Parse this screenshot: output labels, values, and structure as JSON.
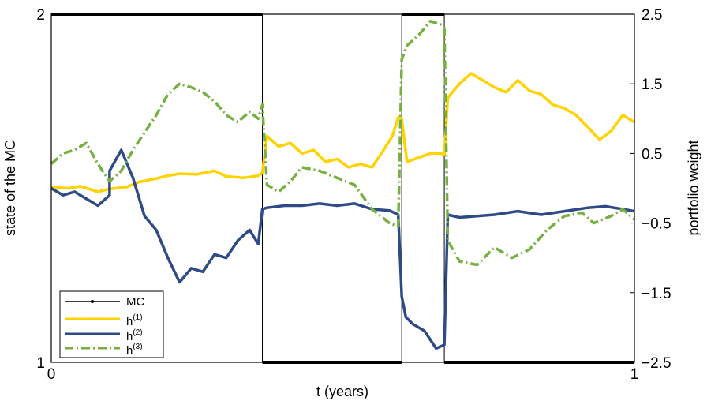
{
  "chart_data": {
    "type": "line",
    "xlabel": "t (years)",
    "ylabel_left": "state of the MC",
    "ylabel_right": "portfolio weight",
    "xlim": [
      0,
      1
    ],
    "ylim_left": [
      1,
      2
    ],
    "ylim_right": [
      -2.5,
      2.5
    ],
    "x_ticks": [
      "0",
      "1"
    ],
    "y_left_ticks": [
      "1",
      "2"
    ],
    "y_right_ticks": [
      "−2.5",
      "−1.5",
      "−0.5",
      "0.5",
      "1.5",
      "2.5"
    ],
    "y_right_tick_values": [
      -2.5,
      -1.5,
      -0.5,
      0.5,
      1.5,
      2.5
    ],
    "grid": false,
    "legend_position": "bottom-left",
    "mc_state": {
      "name": "MC",
      "color": "#000000",
      "segments": [
        [
          0,
          0.362,
          2
        ],
        [
          0.362,
          0.601,
          1
        ],
        [
          0.601,
          0.674,
          2
        ],
        [
          0.674,
          1,
          1
        ]
      ]
    },
    "series": [
      {
        "name": "h",
        "superscript": "(1)",
        "color": "#FFD200",
        "style": "solid",
        "x": [
          0,
          0.03,
          0.05,
          0.08,
          0.1,
          0.13,
          0.15,
          0.18,
          0.2,
          0.22,
          0.25,
          0.28,
          0.3,
          0.33,
          0.355,
          0.362,
          0.37,
          0.39,
          0.41,
          0.43,
          0.45,
          0.47,
          0.49,
          0.51,
          0.53,
          0.55,
          0.57,
          0.585,
          0.595,
          0.601,
          0.61,
          0.63,
          0.65,
          0.668,
          0.674,
          0.68,
          0.7,
          0.72,
          0.74,
          0.76,
          0.78,
          0.8,
          0.82,
          0.84,
          0.86,
          0.88,
          0.9,
          0.92,
          0.94,
          0.96,
          0.98,
          1.0
        ],
        "y": [
          0.02,
          0.0,
          0.03,
          -0.05,
          -0.01,
          0.02,
          0.09,
          0.14,
          0.18,
          0.21,
          0.2,
          0.25,
          0.17,
          0.15,
          0.18,
          0.22,
          0.75,
          0.6,
          0.65,
          0.5,
          0.55,
          0.38,
          0.42,
          0.3,
          0.35,
          0.3,
          0.55,
          0.75,
          1.02,
          1.0,
          0.38,
          0.44,
          0.5,
          0.5,
          0.48,
          1.3,
          1.5,
          1.65,
          1.55,
          1.45,
          1.38,
          1.55,
          1.4,
          1.35,
          1.2,
          1.15,
          1.05,
          0.88,
          0.7,
          0.82,
          1.05,
          0.95
        ]
      },
      {
        "name": "h",
        "superscript": "(2)",
        "color": "#2E4A87",
        "style": "solid",
        "x": [
          0,
          0.02,
          0.04,
          0.06,
          0.08,
          0.1,
          0.1,
          0.12,
          0.14,
          0.16,
          0.18,
          0.2,
          0.22,
          0.24,
          0.26,
          0.28,
          0.3,
          0.32,
          0.34,
          0.355,
          0.362,
          0.37,
          0.4,
          0.43,
          0.46,
          0.49,
          0.52,
          0.55,
          0.58,
          0.595,
          0.601,
          0.608,
          0.62,
          0.64,
          0.66,
          0.674,
          0.68,
          0.7,
          0.73,
          0.76,
          0.8,
          0.84,
          0.88,
          0.92,
          0.95,
          0.98,
          1.0
        ],
        "y": [
          0.0,
          -0.1,
          -0.05,
          -0.15,
          -0.25,
          -0.1,
          0.25,
          0.55,
          0.15,
          -0.4,
          -0.6,
          -1.0,
          -1.35,
          -1.15,
          -1.2,
          -0.95,
          -1.0,
          -0.75,
          -0.6,
          -0.8,
          -0.3,
          -0.28,
          -0.25,
          -0.25,
          -0.22,
          -0.25,
          -0.22,
          -0.3,
          -0.32,
          -0.38,
          -1.55,
          -1.85,
          -1.95,
          -2.05,
          -2.3,
          -2.25,
          -0.38,
          -0.42,
          -0.4,
          -0.38,
          -0.33,
          -0.38,
          -0.33,
          -0.28,
          -0.26,
          -0.3,
          -0.33
        ]
      },
      {
        "name": "h",
        "superscript": "(3)",
        "color": "#77B041",
        "style": "dashdot",
        "x": [
          0,
          0.02,
          0.04,
          0.06,
          0.08,
          0.1,
          0.12,
          0.14,
          0.16,
          0.18,
          0.2,
          0.22,
          0.24,
          0.26,
          0.28,
          0.3,
          0.32,
          0.34,
          0.355,
          0.362,
          0.37,
          0.39,
          0.41,
          0.43,
          0.46,
          0.49,
          0.52,
          0.55,
          0.58,
          0.595,
          0.601,
          0.61,
          0.63,
          0.65,
          0.668,
          0.674,
          0.68,
          0.7,
          0.73,
          0.76,
          0.79,
          0.82,
          0.85,
          0.88,
          0.91,
          0.93,
          0.96,
          0.98,
          1.0
        ],
        "y": [
          0.35,
          0.5,
          0.55,
          0.65,
          0.35,
          0.1,
          0.25,
          0.55,
          0.8,
          1.05,
          1.35,
          1.5,
          1.45,
          1.38,
          1.25,
          1.05,
          0.95,
          1.1,
          1.0,
          1.2,
          0.05,
          -0.05,
          0.1,
          0.3,
          0.25,
          0.15,
          0.05,
          -0.3,
          -0.5,
          -0.55,
          1.85,
          2.05,
          2.2,
          2.4,
          2.35,
          2.3,
          -0.75,
          -1.05,
          -1.1,
          -0.85,
          -1.0,
          -0.88,
          -0.6,
          -0.4,
          -0.35,
          -0.5,
          -0.4,
          -0.3,
          -0.45
        ]
      }
    ]
  }
}
